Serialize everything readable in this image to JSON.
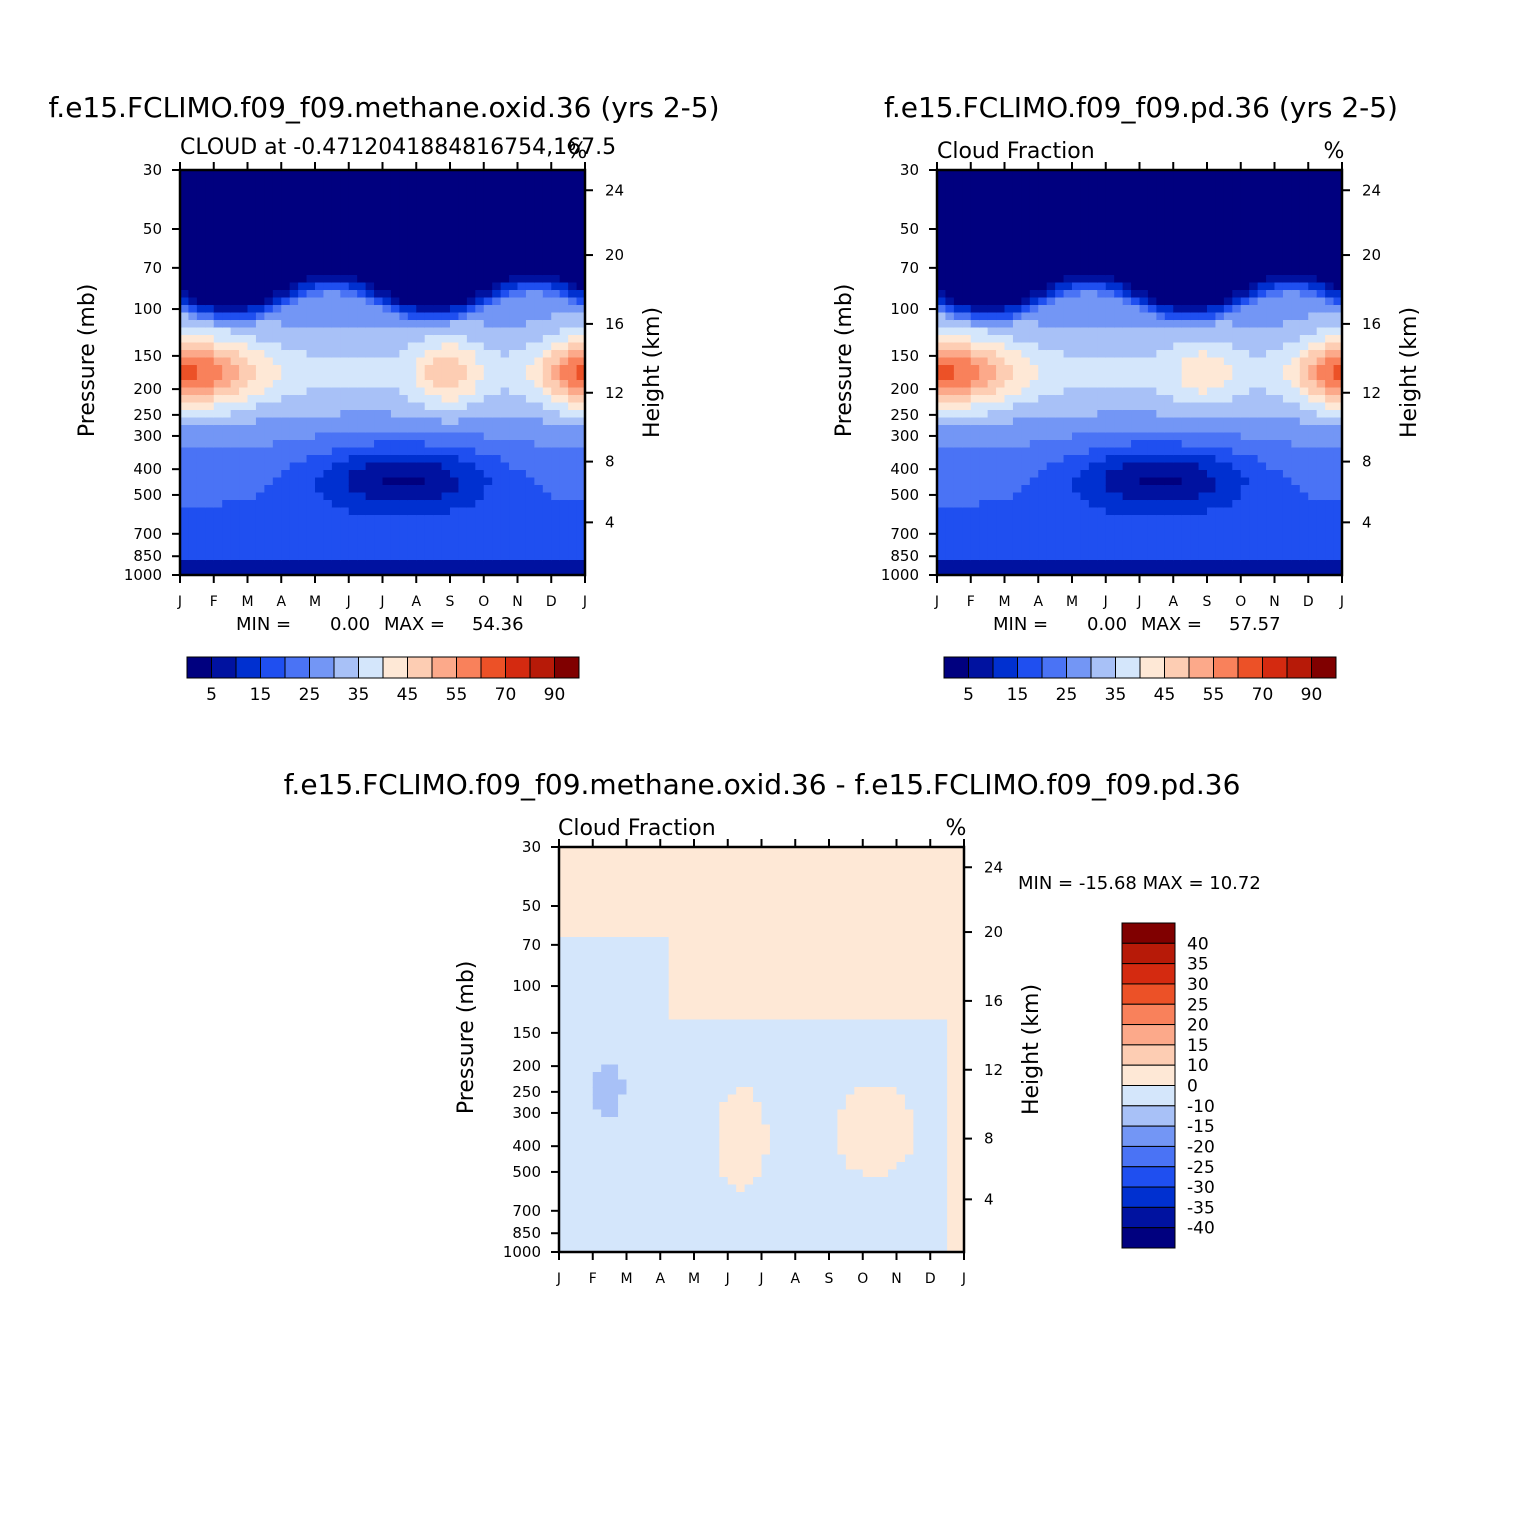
{
  "colors": {
    "main_scale": [
      "#00007f",
      "#0012a0",
      "#0030d0",
      "#1f4ff0",
      "#4a73f5",
      "#7396f5",
      "#a8c1f7",
      "#d4e6fb",
      "#fee8d6",
      "#fdcdb3",
      "#fca98a",
      "#f9815b",
      "#ec5127",
      "#d42a10",
      "#b71a08",
      "#800000"
    ],
    "diff_scale": [
      "#00007f",
      "#0012a0",
      "#0030d0",
      "#1f4ff0",
      "#4a73f5",
      "#7396f5",
      "#a8c1f7",
      "#d4e6fb",
      "#fee8d6",
      "#fdcdb3",
      "#fca98a",
      "#f9815b",
      "#ec5127",
      "#d42a10",
      "#b71a08",
      "#800000"
    ]
  },
  "common": {
    "months": [
      "J",
      "F",
      "M",
      "A",
      "M",
      "J",
      "J",
      "A",
      "S",
      "O",
      "N",
      "D",
      "J"
    ],
    "pressure_ticks": [
      "30",
      "50",
      "70",
      "100",
      "150",
      "200",
      "250",
      "300",
      "400",
      "500",
      "700",
      "850",
      "1000"
    ],
    "height_ticks": [
      "24",
      "20",
      "16",
      "12",
      "8",
      "4"
    ],
    "y_label": "Pressure  (mb)",
    "y2_label": "Height  (km)",
    "unit": "%"
  },
  "panel1": {
    "title": "f.e15.FCLIMO.f09_f09.methane.oxid.36 (yrs 2-5)",
    "subtitle": "CLOUD at -0.4712041884816754,167.5",
    "min_label": "MIN =",
    "min_value": "0.00",
    "max_label": "MAX =",
    "max_value": "54.36"
  },
  "panel2": {
    "title": "f.e15.FCLIMO.f09_f09.pd.36 (yrs 2-5)",
    "subtitle": "Cloud Fraction",
    "min_label": "MIN =",
    "min_value": "0.00",
    "max_label": "MAX =",
    "max_value": "57.57"
  },
  "panel3": {
    "title": "f.e15.FCLIMO.f09_f09.methane.oxid.36 - f.e15.FCLIMO.f09_f09.pd.36",
    "subtitle": "Cloud Fraction",
    "minmax": "MIN = -15.68 MAX =   10.72"
  },
  "main_colorbar_labels": [
    "5",
    "15",
    "25",
    "35",
    "45",
    "55",
    "70",
    "90"
  ],
  "diff_colorbar_labels": [
    "40",
    "35",
    "30",
    "25",
    "20",
    "15",
    "10",
    "0",
    "-10",
    "-15",
    "-20",
    "-25",
    "-30",
    "-35",
    "-40"
  ],
  "chart_data": [
    {
      "type": "heatmap",
      "title": "f.e15.FCLIMO.f09_f09.methane.oxid.36 (yrs 2-5)",
      "subtitle": "CLOUD at -0.4712041884816754,167.5",
      "x": [
        "J",
        "F",
        "M",
        "A",
        "M",
        "J",
        "J",
        "A",
        "S",
        "O",
        "N",
        "D",
        "J"
      ],
      "y_pressure_mb": [
        30,
        50,
        70,
        100,
        150,
        200,
        250,
        300,
        400,
        500,
        700,
        850,
        1000
      ],
      "z_description_units": "%",
      "levels": [
        5,
        10,
        15,
        20,
        25,
        30,
        35,
        40,
        45,
        50,
        55,
        60,
        70,
        80,
        90
      ],
      "min": 0.0,
      "max": 54.36,
      "ylabel": "Pressure  (mb)",
      "y2label": "Height  (km)"
    },
    {
      "type": "heatmap",
      "title": "f.e15.FCLIMO.f09_f09.pd.36 (yrs 2-5)",
      "subtitle": "Cloud Fraction",
      "x": [
        "J",
        "F",
        "M",
        "A",
        "M",
        "J",
        "J",
        "A",
        "S",
        "O",
        "N",
        "D",
        "J"
      ],
      "y_pressure_mb": [
        30,
        50,
        70,
        100,
        150,
        200,
        250,
        300,
        400,
        500,
        700,
        850,
        1000
      ],
      "z_description_units": "%",
      "levels": [
        5,
        10,
        15,
        20,
        25,
        30,
        35,
        40,
        45,
        50,
        55,
        60,
        70,
        80,
        90
      ],
      "min": 0.0,
      "max": 57.57,
      "ylabel": "Pressure  (mb)",
      "y2label": "Height  (km)"
    },
    {
      "type": "heatmap",
      "title": "f.e15.FCLIMO.f09_f09.methane.oxid.36 - f.e15.FCLIMO.f09_f09.pd.36",
      "subtitle": "Cloud Fraction",
      "x": [
        "J",
        "F",
        "M",
        "A",
        "M",
        "J",
        "J",
        "A",
        "S",
        "O",
        "N",
        "D",
        "J"
      ],
      "y_pressure_mb": [
        30,
        50,
        70,
        100,
        150,
        200,
        250,
        300,
        400,
        500,
        700,
        850,
        1000
      ],
      "z_description_units": "%",
      "levels": [
        -40,
        -35,
        -30,
        -25,
        -20,
        -15,
        -10,
        0,
        10,
        15,
        20,
        25,
        30,
        35,
        40
      ],
      "min": -15.68,
      "max": 10.72,
      "ylabel": "Pressure  (mb)",
      "y2label": "Height  (km)"
    }
  ]
}
